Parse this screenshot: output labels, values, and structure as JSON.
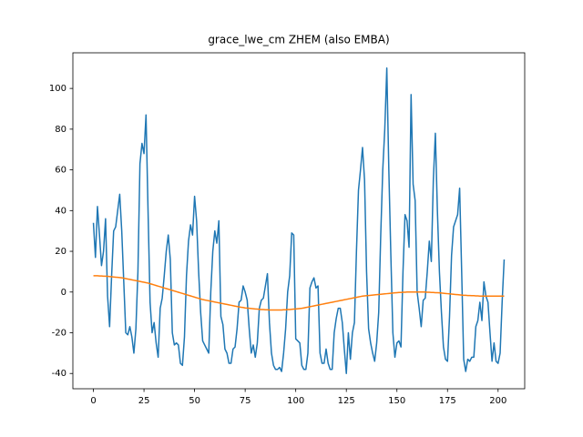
{
  "chart_data": {
    "type": "line",
    "title": "grace_lwe_cm ZHEM (also EMBA)",
    "x": [
      0,
      1,
      2,
      3,
      4,
      5,
      6,
      7,
      8,
      9,
      10,
      11,
      12,
      13,
      14,
      15,
      16,
      17,
      18,
      19,
      20,
      21,
      22,
      23,
      24,
      25,
      26,
      27,
      28,
      29,
      30,
      31,
      32,
      33,
      34,
      35,
      36,
      37,
      38,
      39,
      40,
      41,
      42,
      43,
      44,
      45,
      46,
      47,
      48,
      49,
      50,
      51,
      52,
      53,
      54,
      55,
      56,
      57,
      58,
      59,
      60,
      61,
      62,
      63,
      64,
      65,
      66,
      67,
      68,
      69,
      70,
      71,
      72,
      73,
      74,
      75,
      76,
      77,
      78,
      79,
      80,
      81,
      82,
      83,
      84,
      85,
      86,
      87,
      88,
      89,
      90,
      91,
      92,
      93,
      94,
      95,
      96,
      97,
      98,
      99,
      100,
      101,
      102,
      103,
      104,
      105,
      106,
      107,
      108,
      109,
      110,
      111,
      112,
      113,
      114,
      115,
      116,
      117,
      118,
      119,
      120,
      121,
      122,
      123,
      124,
      125,
      126,
      127,
      128,
      129,
      130,
      131,
      132,
      133,
      134,
      135,
      136,
      137,
      138,
      139,
      140,
      141,
      142,
      143,
      144,
      145,
      146,
      147,
      148,
      149,
      150,
      151,
      152,
      153,
      154,
      155,
      156,
      157,
      158,
      159,
      160,
      161,
      162,
      163,
      164,
      165,
      166,
      167,
      168,
      169,
      170,
      171,
      172,
      173,
      174,
      175,
      176,
      177,
      178,
      179,
      180,
      181,
      182,
      183,
      184,
      185,
      186,
      187,
      188,
      189,
      190,
      191,
      192,
      193,
      194,
      195,
      196,
      197,
      198,
      199,
      200,
      201,
      202,
      203
    ],
    "series": [
      {
        "color": "#1f77b4",
        "values": [
          34,
          17,
          42,
          28,
          13,
          20,
          36,
          -2,
          -17,
          8,
          30,
          32,
          40,
          48,
          30,
          5,
          -20,
          -21,
          -17,
          -22,
          -30,
          -18,
          10,
          63,
          73,
          68,
          87,
          40,
          -5,
          -20,
          -15,
          -25,
          -32,
          -8,
          -3,
          8,
          20,
          28,
          16,
          -20,
          -26,
          -25,
          -26,
          -35,
          -36,
          -22,
          8,
          25,
          33,
          28,
          47,
          35,
          10,
          -10,
          -24,
          -26,
          -28,
          -30,
          0,
          20,
          30,
          24,
          35,
          -12,
          -16,
          -28,
          -30,
          -35,
          -35,
          -28,
          -27,
          -18,
          -5,
          -4,
          3,
          0,
          -4,
          -18,
          -30,
          -26,
          -32,
          -25,
          -8,
          -4,
          -3,
          3,
          9,
          -15,
          -30,
          -36,
          -38,
          -38,
          -37,
          -39,
          -30,
          -18,
          0,
          8,
          29,
          28,
          -23,
          -24,
          -25,
          -36,
          -38,
          -38,
          -30,
          2,
          5,
          7,
          2,
          3,
          -30,
          -35,
          -35,
          -28,
          -35,
          -38,
          -38,
          -20,
          -13,
          -8,
          -8,
          -15,
          -28,
          -40,
          -20,
          -33,
          -20,
          -15,
          20,
          50,
          60,
          71,
          55,
          10,
          -18,
          -25,
          -30,
          -34,
          -25,
          -10,
          28,
          60,
          80,
          110,
          60,
          18,
          -20,
          -32,
          -25,
          -24,
          -27,
          10,
          38,
          35,
          22,
          97,
          53,
          45,
          0,
          -8,
          -17,
          -4,
          -3,
          10,
          25,
          15,
          55,
          78,
          40,
          10,
          -10,
          -27,
          -33,
          -34,
          -12,
          18,
          32,
          35,
          38,
          51,
          10,
          -33,
          -39,
          -33,
          -34,
          -32,
          -32,
          -17,
          -14,
          -5,
          -14,
          5,
          -2,
          -5,
          -20,
          -34,
          -25,
          -34,
          -35,
          -30,
          -5,
          16
        ]
      },
      {
        "color": "#ff7f0e",
        "values": [
          8.0,
          8.0,
          8.0,
          7.9,
          7.9,
          7.8,
          7.8,
          7.7,
          7.6,
          7.5,
          7.4,
          7.3,
          7.2,
          7.1,
          7.0,
          6.8,
          6.6,
          6.4,
          6.2,
          6.0,
          5.8,
          5.6,
          5.4,
          5.2,
          5.0,
          4.8,
          4.6,
          4.4,
          4.1,
          3.8,
          3.5,
          3.2,
          2.9,
          2.6,
          2.3,
          2.0,
          1.7,
          1.4,
          1.1,
          0.8,
          0.5,
          0.2,
          -0.1,
          -0.4,
          -0.7,
          -1.0,
          -1.3,
          -1.6,
          -1.9,
          -2.2,
          -2.5,
          -2.8,
          -3.1,
          -3.4,
          -3.7,
          -3.9,
          -4.1,
          -4.3,
          -4.5,
          -4.7,
          -4.9,
          -5.1,
          -5.3,
          -5.5,
          -5.7,
          -5.9,
          -6.1,
          -6.3,
          -6.5,
          -6.7,
          -6.9,
          -7.1,
          -7.3,
          -7.5,
          -7.6,
          -7.8,
          -7.9,
          -8.0,
          -8.1,
          -8.2,
          -8.3,
          -8.4,
          -8.5,
          -8.6,
          -8.6,
          -8.7,
          -8.7,
          -8.8,
          -8.8,
          -8.8,
          -8.8,
          -8.8,
          -8.8,
          -8.8,
          -8.7,
          -8.7,
          -8.6,
          -8.6,
          -8.5,
          -8.4,
          -8.3,
          -8.2,
          -8.1,
          -8.0,
          -7.8,
          -7.6,
          -7.4,
          -7.2,
          -7.0,
          -6.8,
          -6.6,
          -6.4,
          -6.2,
          -6.0,
          -5.8,
          -5.6,
          -5.4,
          -5.2,
          -5.0,
          -4.8,
          -4.6,
          -4.4,
          -4.2,
          -4.0,
          -3.8,
          -3.6,
          -3.4,
          -3.2,
          -3.0,
          -2.8,
          -2.6,
          -2.4,
          -2.2,
          -2.0,
          -1.9,
          -1.8,
          -1.7,
          -1.6,
          -1.5,
          -1.4,
          -1.3,
          -1.2,
          -1.1,
          -1.0,
          -0.9,
          -0.8,
          -0.7,
          -0.6,
          -0.5,
          -0.4,
          -0.3,
          -0.2,
          -0.2,
          -0.1,
          -0.1,
          0.0,
          0.0,
          0.0,
          0.0,
          0.0,
          0.0,
          0.0,
          0.0,
          0.0,
          0.0,
          -0.1,
          -0.1,
          -0.2,
          -0.2,
          -0.3,
          -0.3,
          -0.4,
          -0.5,
          -0.6,
          -0.7,
          -0.8,
          -0.9,
          -1.0,
          -1.1,
          -1.2,
          -1.3,
          -1.4,
          -1.5,
          -1.6,
          -1.6,
          -1.7,
          -1.7,
          -1.8,
          -1.8,
          -1.9,
          -1.9,
          -2.0,
          -2.0,
          -2.0,
          -2.0,
          -2.0,
          -2.0,
          -2.0,
          -2.0,
          -2.0,
          -2.0,
          -2.0,
          -2.0,
          -2.0
        ]
      }
    ],
    "xlim": [
      -10.15,
      213.15
    ],
    "xticks": [
      0,
      25,
      50,
      75,
      100,
      125,
      150,
      175,
      200
    ],
    "ylim": [
      -47.5,
      117.5
    ],
    "yticks": [
      -40,
      -20,
      0,
      20,
      40,
      60,
      80,
      100
    ],
    "grid": false
  }
}
